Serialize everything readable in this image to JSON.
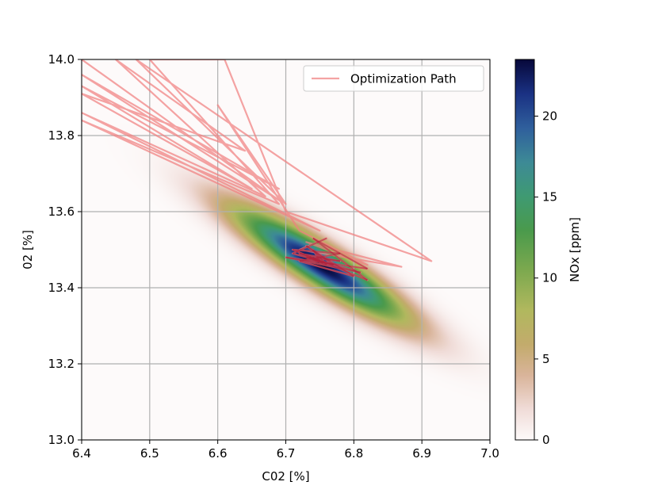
{
  "chart_data": {
    "type": "heatmap",
    "title": "",
    "xlabel": "C02 [%]",
    "ylabel": "02 [%]",
    "xlim": [
      6.4,
      7.0
    ],
    "ylim": [
      13.0,
      14.0
    ],
    "grid": true,
    "xticks": [
      6.4,
      6.5,
      6.6,
      6.7,
      6.8,
      6.9,
      7.0
    ],
    "xtick_labels": [
      "6.4",
      "6.5",
      "6.6",
      "6.7",
      "6.8",
      "6.9",
      "7.0"
    ],
    "yticks": [
      13.0,
      13.2,
      13.4,
      13.6,
      13.8,
      14.0
    ],
    "ytick_labels": [
      "13.0",
      "13.2",
      "13.4",
      "13.6",
      "13.8",
      "14.0"
    ],
    "field": {
      "description": "Gaussian NOx field along a negatively correlated ridge",
      "peak": 23.5,
      "center": [
        6.75,
        13.46
      ],
      "major_axis_slope": -1.2,
      "major_sigma": 0.13,
      "minor_sigma": 0.028
    },
    "colorbar": {
      "label": "NOx [ppm]",
      "range": [
        0,
        23.5
      ],
      "ticks": [
        0,
        5,
        10,
        15,
        20
      ],
      "tick_labels": [
        "0",
        "5",
        "10",
        "15",
        "20"
      ],
      "colormap": "gist_earth_r",
      "stops": [
        {
          "v": 0.0,
          "color": "#fdfafa"
        },
        {
          "v": 0.08,
          "color": "#f0dcd8"
        },
        {
          "v": 0.17,
          "color": "#d9b49a"
        },
        {
          "v": 0.25,
          "color": "#c3ab6c"
        },
        {
          "v": 0.34,
          "color": "#b1b85e"
        },
        {
          "v": 0.45,
          "color": "#7aa84e"
        },
        {
          "v": 0.55,
          "color": "#4a9a4c"
        },
        {
          "v": 0.64,
          "color": "#3f9a72"
        },
        {
          "v": 0.73,
          "color": "#3d8a96"
        },
        {
          "v": 0.82,
          "color": "#2f5f9c"
        },
        {
          "v": 0.91,
          "color": "#1a3183"
        },
        {
          "v": 1.0,
          "color": "#07083a"
        }
      ]
    },
    "series": [
      {
        "name": "Optimization Path",
        "color": "#f08080",
        "points": [
          [
            6.4,
            14.0
          ],
          [
            6.69,
            13.63
          ],
          [
            6.4,
            13.96
          ],
          [
            6.69,
            13.66
          ],
          [
            6.4,
            13.93
          ],
          [
            6.65,
            13.66
          ],
          [
            6.4,
            13.91
          ],
          [
            6.64,
            13.76
          ],
          [
            6.45,
            14.0
          ],
          [
            6.67,
            13.64
          ],
          [
            6.4,
            13.86
          ],
          [
            6.75,
            13.55
          ],
          [
            6.4,
            13.84
          ],
          [
            6.69,
            13.62
          ],
          [
            6.5,
            14.0
          ],
          [
            6.61,
            14.0
          ],
          [
            6.7,
            13.6
          ],
          [
            6.914,
            13.47
          ],
          [
            6.48,
            14.0
          ],
          [
            6.7,
            13.62
          ],
          [
            6.6,
            13.88
          ],
          [
            6.72,
            13.55
          ],
          [
            6.82,
            13.46
          ],
          [
            6.73,
            13.52
          ],
          [
            6.87,
            13.455
          ],
          [
            6.72,
            13.5
          ],
          [
            6.76,
            13.53
          ],
          [
            6.71,
            13.49
          ],
          [
            6.81,
            13.44
          ],
          [
            6.7,
            13.48
          ],
          [
            6.82,
            13.45
          ],
          [
            6.74,
            13.53
          ],
          [
            6.82,
            13.42
          ],
          [
            6.71,
            13.5
          ],
          [
            6.78,
            13.49
          ],
          [
            6.72,
            13.47
          ],
          [
            6.8,
            13.43
          ],
          [
            6.73,
            13.51
          ],
          [
            6.77,
            13.46
          ],
          [
            6.72,
            13.49
          ],
          [
            6.78,
            13.47
          ],
          [
            6.73,
            13.48
          ],
          [
            6.76,
            13.46
          ],
          [
            6.74,
            13.5
          ],
          [
            6.75,
            13.47
          ],
          [
            6.735,
            13.48
          ],
          [
            6.755,
            13.465
          ],
          [
            6.74,
            13.475
          ]
        ]
      }
    ],
    "legend": {
      "position": "top-right",
      "entries": [
        "Optimization Path"
      ]
    }
  }
}
